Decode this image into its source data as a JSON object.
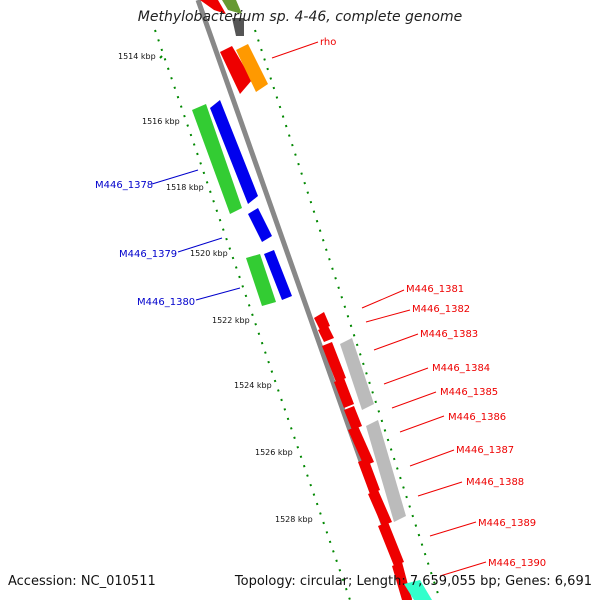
{
  "title": "Methylobacterium sp. 4-46, complete genome",
  "footer": {
    "accession": "Accession: NC_010511",
    "summary": "Topology: circular; Length: 7,659,055 bp; Genes: 6,691"
  },
  "ticks": [
    "1514 kbp",
    "1516 kbp",
    "1518 kbp",
    "1520 kbp",
    "1522 kbp",
    "1524 kbp",
    "1526 kbp",
    "1528 kbp"
  ],
  "colors": {
    "red": "#ee0000",
    "orange": "#ff9900",
    "green": "#33cc33",
    "blue": "#0000ee",
    "gray": "#bbbbbb",
    "teal": "#33ffcc",
    "backbone": "#888888",
    "scale": "#008800"
  },
  "genes": [
    {
      "label": "rho",
      "color": "#ee0000"
    },
    {
      "label": "M446_1378",
      "color": "#0000cc"
    },
    {
      "label": "M446_1379",
      "color": "#0000cc"
    },
    {
      "label": "M446_1380",
      "color": "#0000cc"
    },
    {
      "label": "M446_1381",
      "color": "#ee0000"
    },
    {
      "label": "M446_1382",
      "color": "#ee0000"
    },
    {
      "label": "M446_1383",
      "color": "#ee0000"
    },
    {
      "label": "M446_1384",
      "color": "#ee0000"
    },
    {
      "label": "M446_1385",
      "color": "#ee0000"
    },
    {
      "label": "M446_1386",
      "color": "#ee0000"
    },
    {
      "label": "M446_1387",
      "color": "#ee0000"
    },
    {
      "label": "M446_1388",
      "color": "#ee0000"
    },
    {
      "label": "M446_1389",
      "color": "#ee0000"
    },
    {
      "label": "M446_1390",
      "color": "#ee0000"
    }
  ]
}
